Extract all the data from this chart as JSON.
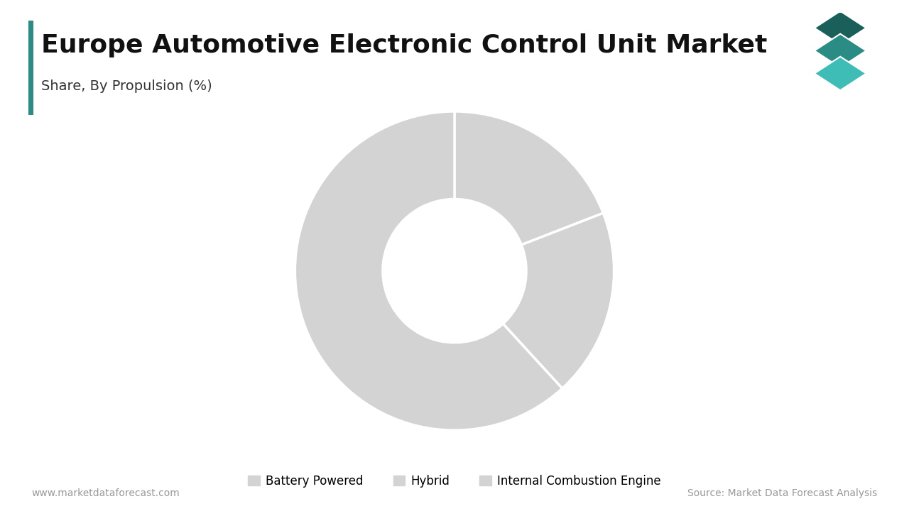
{
  "title": "Europe Automotive Electronic Control Unit Market",
  "subtitle": "Share, By Propulsion (%)",
  "segments": [
    {
      "label": "Battery Powered",
      "value": 19.1
    },
    {
      "label": "Hybrid",
      "value": 19.1
    },
    {
      "label": "Internal Combustion Engine",
      "value": 61.8
    }
  ],
  "color": "#d3d3d3",
  "donut_ratio": 0.55,
  "bg_color": "#ffffff",
  "title_fontsize": 26,
  "subtitle_fontsize": 14,
  "legend_fontsize": 12,
  "footer_left": "www.marketdataforecast.com",
  "footer_right": "Source: Market Data Forecast Analysis",
  "footer_fontsize": 10,
  "left_bar_color": "#2a8c84",
  "icon_colors": [
    "#1a5f5a",
    "#2a8c84",
    "#3dbdb5"
  ]
}
